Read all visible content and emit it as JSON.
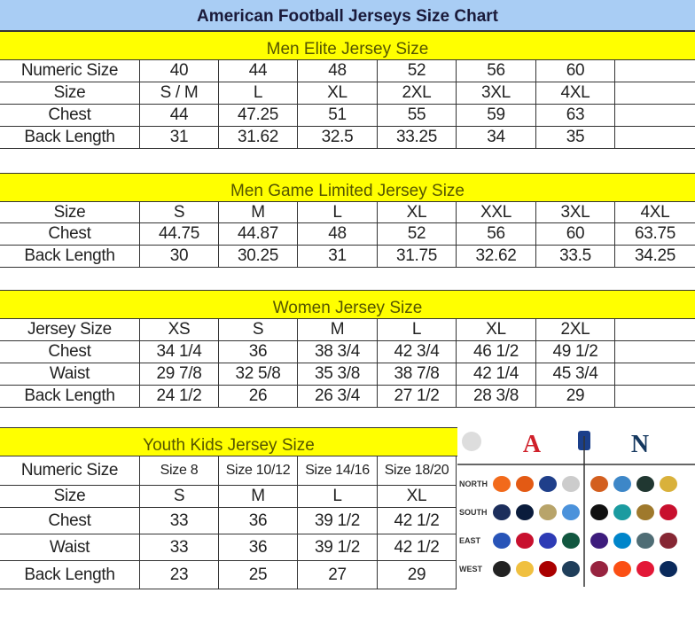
{
  "title": "American Football Jerseys Size Chart",
  "sections": [
    {
      "heading": "Men Elite Jersey Size",
      "rows": [
        [
          "Numeric Size",
          "40",
          "44",
          "48",
          "52",
          "56",
          "60",
          ""
        ],
        [
          "Size",
          "S / M",
          "L",
          "XL",
          "2XL",
          "3XL",
          "4XL",
          ""
        ],
        [
          "Chest",
          "44",
          "47.25",
          "51",
          "55",
          "59",
          "63",
          ""
        ],
        [
          "Back Length",
          "31",
          "31.62",
          "32.5",
          "33.25",
          "34",
          "35",
          ""
        ]
      ]
    },
    {
      "heading": "Men Game Limited Jersey Size",
      "rows": [
        [
          "Size",
          "S",
          "M",
          "L",
          "XL",
          "XXL",
          "3XL",
          "4XL"
        ],
        [
          "Chest",
          "44.75",
          "44.87",
          "48",
          "52",
          "56",
          "60",
          "63.75"
        ],
        [
          "Back Length",
          "30",
          "30.25",
          "31",
          "31.75",
          "32.62",
          "33.5",
          "34.25"
        ]
      ]
    },
    {
      "heading": "Women Jersey Size",
      "rows": [
        [
          "Jersey Size",
          "XS",
          "S",
          "M",
          "L",
          "XL",
          "2XL",
          ""
        ],
        [
          "Chest",
          "34 1/4",
          "36",
          "38 3/4",
          "42 3/4",
          "46 1/2",
          "49 1/2",
          ""
        ],
        [
          "Waist",
          "29 7/8",
          "32 5/8",
          "35 3/8",
          "38 7/8",
          "42 1/4",
          "45 3/4",
          ""
        ],
        [
          "Back Length",
          "24 1/2",
          "26",
          "26 3/4",
          "27 1/2",
          "28 3/8",
          "29",
          ""
        ]
      ]
    },
    {
      "heading": "Youth Kids Jersey Size",
      "rows": [
        [
          "Numeric Size",
          "Size 8",
          "Size 10/12",
          "Size 14/16",
          "Size 18/20"
        ],
        [
          "Size",
          "S",
          "M",
          "L",
          "XL"
        ],
        [
          "Chest",
          "33",
          "36",
          "39 1/2",
          "42 1/2"
        ],
        [
          "Waist",
          "33",
          "36",
          "39 1/2",
          "42 1/2"
        ],
        [
          "Back Length",
          "23",
          "25",
          "27",
          "29"
        ]
      ]
    }
  ],
  "logos": {
    "divisions": [
      "NORTH",
      "SOUTH",
      "EAST",
      "WEST"
    ],
    "afc_colors": [
      [
        "#f26a1b",
        "#e35a14",
        "#1f3f8a",
        "#cccccc"
      ],
      [
        "#1c2e5c",
        "#0a1c3c",
        "#b8a46a",
        "#4b92db"
      ],
      [
        "#2854b8",
        "#c8102e",
        "#2d3bb5",
        "#125740"
      ],
      [
        "#222222",
        "#f0c040",
        "#aa0000",
        "#1f3e5a"
      ]
    ],
    "nfc_colors": [
      [
        "#d35f1f",
        "#3d87c8",
        "#203731",
        "#d9b13b"
      ],
      [
        "#111111",
        "#1b9ba0",
        "#9f792c",
        "#c8102e"
      ],
      [
        "#3d1c7c",
        "#0085ca",
        "#4f6d75",
        "#862734"
      ],
      [
        "#97233f",
        "#fb4f14",
        "#e31837",
        "#0a2a5c"
      ]
    ]
  }
}
